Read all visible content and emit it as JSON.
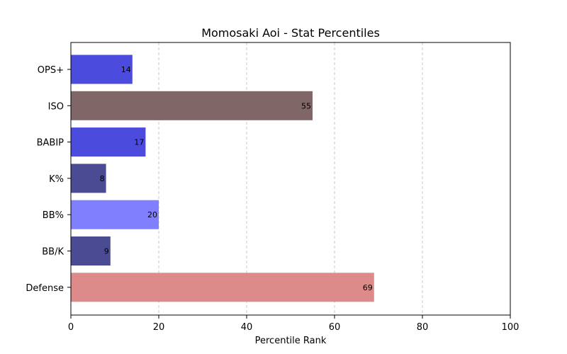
{
  "chart_data": {
    "type": "bar",
    "orientation": "horizontal",
    "title": "Momosaki Aoi - Stat Percentiles",
    "xlabel": "Percentile Rank",
    "ylabel": "",
    "xlim": [
      0,
      100
    ],
    "x_ticks": [
      "0",
      "20",
      "40",
      "60",
      "80",
      "100"
    ],
    "grid": "x-dashed",
    "legend": "none",
    "categories": [
      "OPS+",
      "ISO",
      "BABIP",
      "K%",
      "BB%",
      "BB/K",
      "Defense"
    ],
    "values": [
      14,
      55,
      17,
      8,
      20,
      9,
      69
    ],
    "value_labels": [
      "14",
      "55",
      "17",
      "8",
      "20",
      "9",
      "69"
    ],
    "colors": [
      "#4b4bdd",
      "#806666",
      "#4b4bdd",
      "#4b4b94",
      "#8080ff",
      "#4b4b94",
      "#dd8a8a"
    ]
  }
}
